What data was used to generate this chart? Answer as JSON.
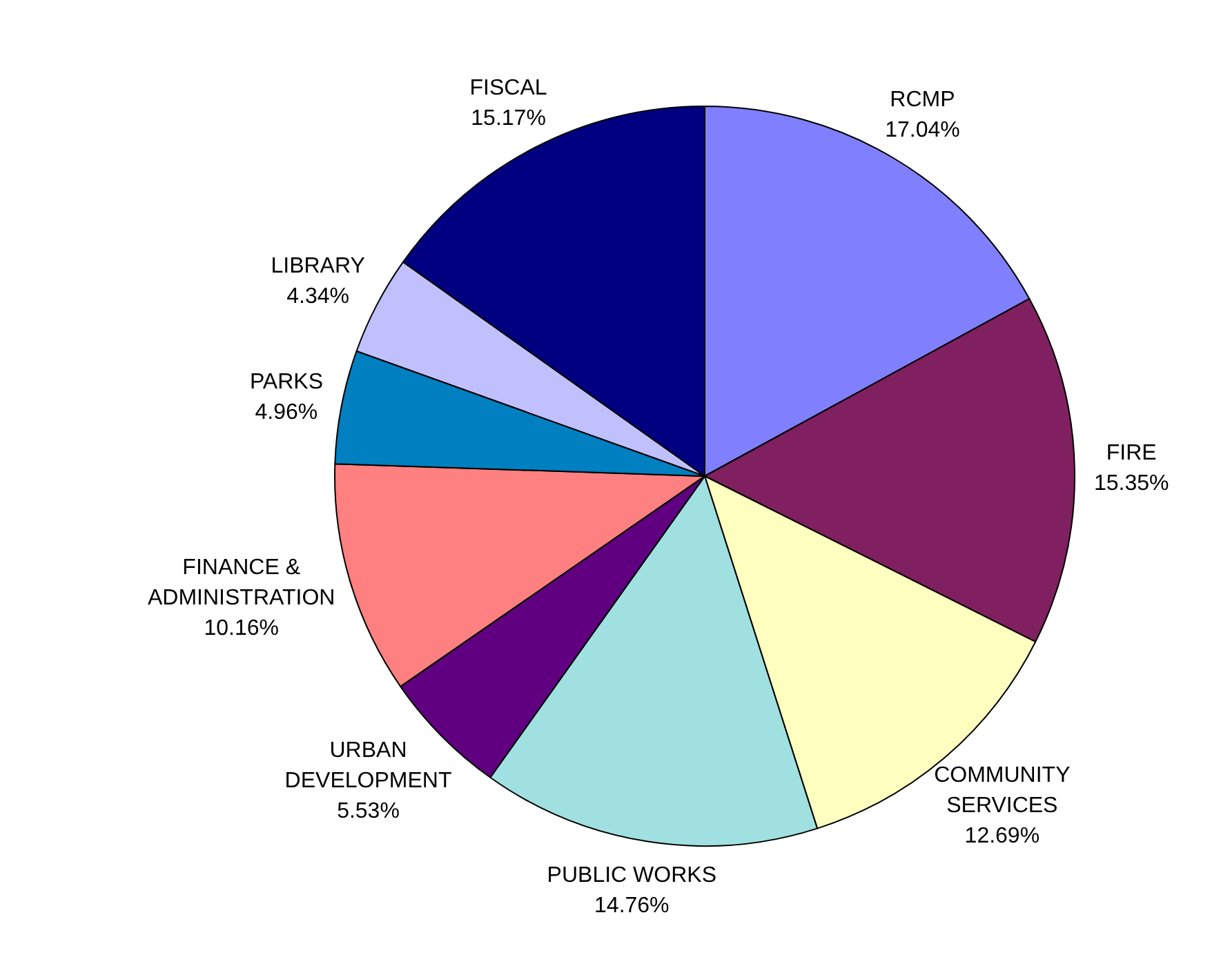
{
  "chart_data": {
    "type": "pie",
    "categories": [
      "RCMP",
      "FIRE",
      "COMMUNITY SERVICES",
      "PUBLIC WORKS",
      "URBAN DEVELOPMENT",
      "FINANCE & ADMINISTRATION",
      "PARKS",
      "LIBRARY",
      "FISCAL"
    ],
    "values": [
      17.04,
      15.35,
      12.69,
      14.76,
      5.53,
      10.16,
      4.96,
      4.34,
      15.17
    ],
    "value_labels": [
      "17.04%",
      "15.35%",
      "12.69%",
      "14.76%",
      "5.53%",
      "10.16%",
      "4.96%",
      "4.34%",
      "15.17%"
    ],
    "colors": [
      "#8080ff",
      "#802060",
      "#ffffc0",
      "#a0e0e0",
      "#600080",
      "#ff8080",
      "#0080c0",
      "#c0c0ff",
      "#000080"
    ],
    "legend": false
  }
}
